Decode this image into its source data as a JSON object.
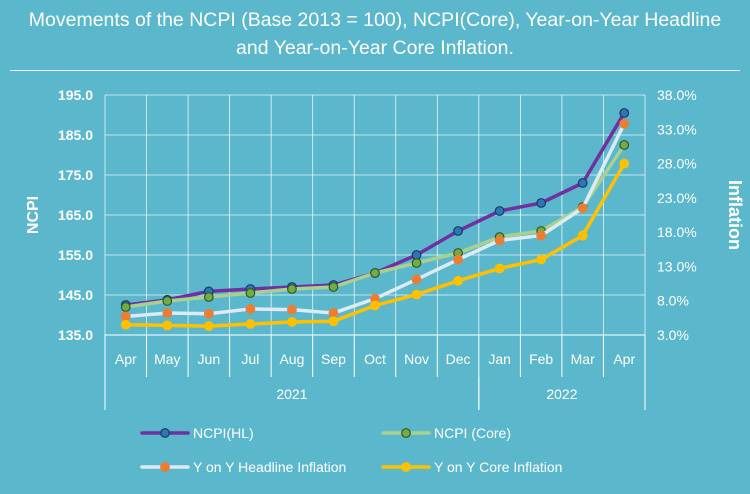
{
  "title_line1": "Movements of the NCPI (Base 2013 = 100), NCPI(Core), Year-on-Year Headline",
  "title_line2": "and Year-on-Year Core Inflation.",
  "chart_data": {
    "type": "line",
    "title": "Movements of the NCPI (Base 2013 = 100), NCPI(Core), Year-on-Year Headline and Year-on-Year Core Inflation.",
    "ylabel": "NCPI",
    "y2label": "Inflation",
    "ylim": [
      135.0,
      195.0
    ],
    "y2lim": [
      3.0,
      38.0
    ],
    "y_ticks": [
      "135.0",
      "145.0",
      "155.0",
      "165.0",
      "175.0",
      "185.0",
      "195.0"
    ],
    "y2_ticks": [
      "3.0%",
      "8.0%",
      "13.0%",
      "18.0%",
      "23.0%",
      "28.0%",
      "33.0%",
      "38.0%"
    ],
    "categories": [
      "Apr",
      "May",
      "Jun",
      "Jul",
      "Aug",
      "Sep",
      "Oct",
      "Nov",
      "Dec",
      "Jan",
      "Feb",
      "Mar",
      "Apr"
    ],
    "year_groups": [
      {
        "label": "2021",
        "start": 0,
        "end": 8
      },
      {
        "label": "2022",
        "start": 9,
        "end": 12
      }
    ],
    "series": [
      {
        "name": "NCPI(HL)",
        "axis": "left",
        "color": "#7030a0",
        "marker_fill": "#2e75b6",
        "marker_edge": "#1f3864",
        "values": [
          142.5,
          143.8,
          145.9,
          146.5,
          147.0,
          147.5,
          150.5,
          155.0,
          161.0,
          166.0,
          168.0,
          173.0,
          190.5
        ]
      },
      {
        "name": "NCPI (Core)",
        "axis": "left",
        "color": "#a9d18e",
        "marker_fill": "#70ad47",
        "marker_edge": "#375623",
        "values": [
          142.0,
          143.5,
          144.5,
          145.5,
          146.5,
          147.0,
          150.5,
          153.0,
          155.5,
          159.5,
          161.0,
          167.0,
          182.5
        ]
      },
      {
        "name": "Y on Y Headline Inflation",
        "axis": "right",
        "color": "#deebf7",
        "marker_fill": "#ed7d31",
        "marker_edge": "#ed7d31",
        "values": [
          5.7,
          6.2,
          6.1,
          6.8,
          6.7,
          6.2,
          8.3,
          11.1,
          14.0,
          16.8,
          17.5,
          21.5,
          33.8
        ]
      },
      {
        "name": "Y on Y Core Inflation",
        "axis": "right",
        "color": "#ffc000",
        "marker_fill": "#ffc000",
        "marker_edge": "#ffc000",
        "values": [
          4.5,
          4.4,
          4.3,
          4.6,
          4.9,
          5.0,
          7.3,
          8.9,
          10.9,
          12.7,
          14.0,
          17.5,
          28.0
        ]
      }
    ],
    "legend_position": "bottom"
  }
}
